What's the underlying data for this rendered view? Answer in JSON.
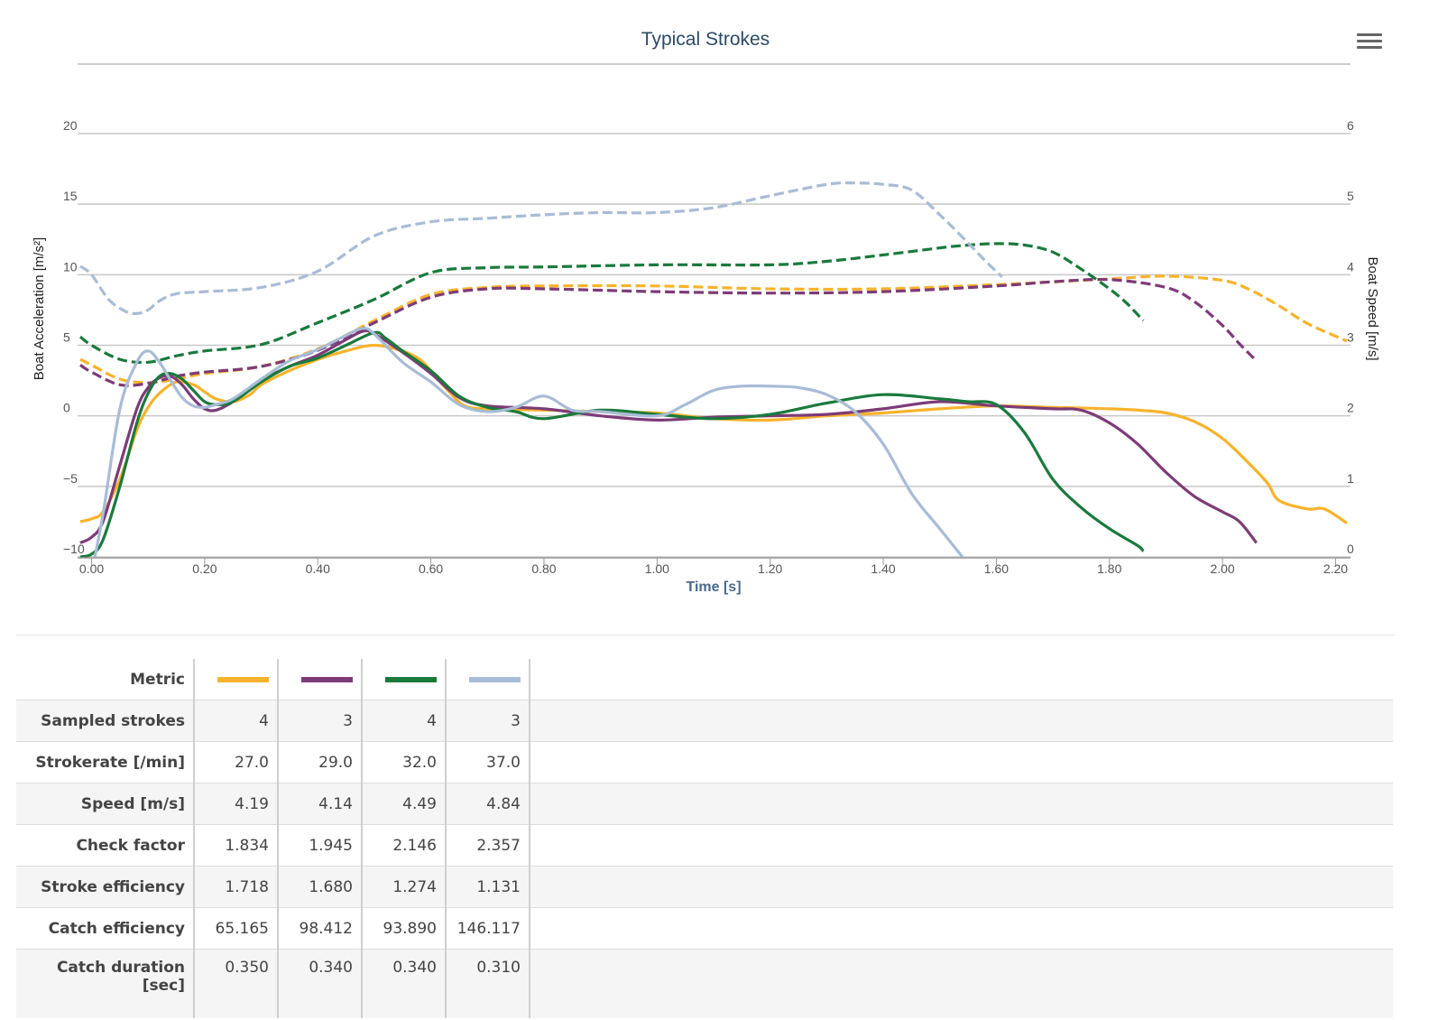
{
  "chart_data": {
    "type": "line",
    "title": "Typical Strokes",
    "xlabel": "Time [s]",
    "ylabel_left": "Boat Acceleration [m/s²]",
    "ylabel_right": "Boat Speed [m/s]",
    "xlim": [
      -0.02,
      2.22
    ],
    "ylim_left": [
      -10,
      20
    ],
    "ylim_right": [
      0,
      6
    ],
    "x_ticks": [
      "0.00",
      "0.20",
      "0.40",
      "0.60",
      "0.80",
      "1.00",
      "1.20",
      "1.40",
      "1.60",
      "1.80",
      "2.00",
      "2.20"
    ],
    "x_tick_values": [
      0,
      0.2,
      0.4,
      0.6,
      0.8,
      1.0,
      1.2,
      1.4,
      1.6,
      1.8,
      2.0,
      2.2
    ],
    "y_left_ticks": [
      "20",
      "15",
      "10",
      "5",
      "0",
      "−5",
      "−10"
    ],
    "y_left_tick_values": [
      20,
      15,
      10,
      5,
      0,
      -5,
      -10
    ],
    "y_right_ticks": [
      "6",
      "5",
      "4",
      "3",
      "2",
      "1",
      "0"
    ],
    "y_right_tick_values": [
      6,
      5,
      4,
      3,
      2,
      1,
      0
    ],
    "grid": true,
    "series": [
      {
        "color": "#f7b32b",
        "axis": "left",
        "style": "solid",
        "x": [
          -0.02,
          0.0,
          0.02,
          0.05,
          0.08,
          0.1,
          0.12,
          0.15,
          0.18,
          0.2,
          0.22,
          0.25,
          0.28,
          0.3,
          0.35,
          0.4,
          0.45,
          0.5,
          0.55,
          0.58,
          0.6,
          0.63,
          0.66,
          0.7,
          0.8,
          0.9,
          1.0,
          1.1,
          1.2,
          1.3,
          1.4,
          1.5,
          1.6,
          1.7,
          1.8,
          1.85,
          1.9,
          1.95,
          2.0,
          2.05,
          2.08,
          2.1,
          2.15,
          2.18,
          2.22
        ],
        "y": [
          -7.5,
          -7.3,
          -6.8,
          -4.5,
          -1.0,
          0.6,
          1.6,
          2.4,
          2.2,
          1.7,
          1.2,
          1.0,
          1.5,
          2.2,
          3.2,
          4.0,
          4.6,
          5.0,
          4.6,
          4.0,
          3.2,
          1.8,
          0.7,
          0.5,
          0.4,
          0.3,
          0.2,
          -0.2,
          -0.3,
          0.0,
          0.2,
          0.5,
          0.7,
          0.6,
          0.5,
          0.4,
          0.2,
          -0.4,
          -1.6,
          -3.5,
          -4.8,
          -6.0,
          -6.6,
          -6.6,
          -7.6
        ]
      },
      {
        "color": "#f7b32b",
        "axis": "right",
        "style": "dashed",
        "x": [
          -0.02,
          0.0,
          0.05,
          0.1,
          0.15,
          0.2,
          0.3,
          0.4,
          0.5,
          0.6,
          0.7,
          0.8,
          1.0,
          1.2,
          1.4,
          1.6,
          1.8,
          1.9,
          2.0,
          2.05,
          2.1,
          2.15,
          2.22
        ],
        "y": [
          2.8,
          2.72,
          2.52,
          2.47,
          2.52,
          2.6,
          2.7,
          2.95,
          3.35,
          3.72,
          3.82,
          3.84,
          3.84,
          3.8,
          3.8,
          3.86,
          3.94,
          3.98,
          3.92,
          3.78,
          3.56,
          3.31,
          3.06
        ]
      },
      {
        "color": "#7d3b78",
        "axis": "left",
        "style": "solid",
        "x": [
          -0.02,
          0.0,
          0.02,
          0.05,
          0.08,
          0.1,
          0.12,
          0.14,
          0.16,
          0.18,
          0.2,
          0.22,
          0.25,
          0.3,
          0.35,
          0.4,
          0.45,
          0.48,
          0.5,
          0.55,
          0.6,
          0.65,
          0.7,
          0.8,
          0.9,
          1.0,
          1.1,
          1.2,
          1.3,
          1.4,
          1.5,
          1.6,
          1.7,
          1.75,
          1.8,
          1.85,
          1.9,
          1.95,
          2.0,
          2.03,
          2.06
        ],
        "y": [
          -9.0,
          -8.6,
          -7.5,
          -3.5,
          0.5,
          2.0,
          2.7,
          2.8,
          2.2,
          1.2,
          0.5,
          0.4,
          1.0,
          2.5,
          3.5,
          4.3,
          5.4,
          6.0,
          5.8,
          4.5,
          3.0,
          1.3,
          0.7,
          0.5,
          0.0,
          -0.3,
          -0.1,
          0.0,
          0.1,
          0.5,
          1.0,
          0.7,
          0.5,
          0.4,
          -0.5,
          -2.0,
          -4.0,
          -5.7,
          -6.8,
          -7.5,
          -9.0
        ]
      },
      {
        "color": "#7d3b78",
        "axis": "right",
        "style": "dashed",
        "x": [
          -0.02,
          0.0,
          0.05,
          0.1,
          0.15,
          0.2,
          0.3,
          0.4,
          0.5,
          0.6,
          0.7,
          0.8,
          1.0,
          1.2,
          1.4,
          1.6,
          1.7,
          1.8,
          1.9,
          1.95,
          2.0,
          2.03,
          2.06
        ],
        "y": [
          2.72,
          2.62,
          2.44,
          2.46,
          2.56,
          2.62,
          2.7,
          2.93,
          3.32,
          3.68,
          3.8,
          3.8,
          3.76,
          3.74,
          3.76,
          3.84,
          3.9,
          3.93,
          3.82,
          3.62,
          3.28,
          3.02,
          2.78
        ]
      },
      {
        "color": "#1a7a3c",
        "axis": "left",
        "style": "solid",
        "x": [
          -0.02,
          0.0,
          0.02,
          0.05,
          0.08,
          0.1,
          0.12,
          0.14,
          0.16,
          0.18,
          0.2,
          0.22,
          0.25,
          0.3,
          0.35,
          0.4,
          0.45,
          0.5,
          0.52,
          0.55,
          0.6,
          0.65,
          0.7,
          0.75,
          0.8,
          0.9,
          1.0,
          1.1,
          1.2,
          1.3,
          1.4,
          1.5,
          1.55,
          1.6,
          1.65,
          1.7,
          1.75,
          1.8,
          1.85,
          1.86
        ],
        "y": [
          -10.0,
          -9.8,
          -8.8,
          -5.0,
          -0.5,
          1.6,
          2.8,
          3.0,
          2.6,
          1.8,
          1.0,
          0.8,
          1.0,
          2.4,
          3.5,
          4.1,
          5.0,
          5.9,
          5.5,
          4.6,
          3.2,
          1.4,
          0.6,
          0.3,
          -0.2,
          0.4,
          0.1,
          -0.2,
          0.1,
          0.9,
          1.5,
          1.2,
          1.0,
          0.8,
          -1.2,
          -4.5,
          -6.5,
          -8.0,
          -9.2,
          -9.6
        ]
      },
      {
        "color": "#1a7a3c",
        "axis": "right",
        "style": "dashed",
        "x": [
          -0.02,
          0.0,
          0.05,
          0.1,
          0.15,
          0.2,
          0.3,
          0.4,
          0.5,
          0.6,
          0.7,
          0.8,
          1.0,
          1.2,
          1.3,
          1.4,
          1.5,
          1.55,
          1.6,
          1.65,
          1.7,
          1.75,
          1.8,
          1.83,
          1.86
        ],
        "y": [
          3.12,
          3.0,
          2.8,
          2.76,
          2.85,
          2.92,
          3.01,
          3.32,
          3.65,
          4.03,
          4.1,
          4.11,
          4.14,
          4.14,
          4.19,
          4.28,
          4.38,
          4.42,
          4.44,
          4.42,
          4.32,
          4.08,
          3.8,
          3.6,
          3.35
        ]
      },
      {
        "color": "#a8bcd6",
        "axis": "left",
        "style": "solid",
        "x": [
          -0.02,
          -0.01,
          0.0,
          0.02,
          0.05,
          0.08,
          0.1,
          0.12,
          0.14,
          0.16,
          0.18,
          0.2,
          0.22,
          0.25,
          0.3,
          0.35,
          0.4,
          0.45,
          0.48,
          0.5,
          0.55,
          0.6,
          0.65,
          0.7,
          0.75,
          0.8,
          0.85,
          0.9,
          1.0,
          1.05,
          1.1,
          1.15,
          1.2,
          1.25,
          1.3,
          1.35,
          1.4,
          1.45,
          1.5,
          1.54
        ],
        "y": [
          -12.0,
          -12.0,
          -11.0,
          -7.0,
          0.5,
          3.8,
          4.6,
          3.8,
          2.5,
          1.3,
          0.7,
          0.6,
          0.8,
          1.2,
          2.6,
          3.9,
          4.7,
          5.7,
          6.2,
          5.8,
          3.8,
          2.4,
          0.8,
          0.3,
          0.6,
          1.4,
          0.4,
          0.3,
          0.0,
          0.8,
          1.8,
          2.1,
          2.1,
          2.0,
          1.5,
          0.3,
          -2.0,
          -5.5,
          -8.0,
          -10.0
        ]
      },
      {
        "color": "#a8bcd6",
        "axis": "right",
        "style": "dashed",
        "x": [
          -0.02,
          0.0,
          0.03,
          0.06,
          0.08,
          0.1,
          0.12,
          0.15,
          0.2,
          0.3,
          0.4,
          0.5,
          0.6,
          0.7,
          0.8,
          0.9,
          1.0,
          1.1,
          1.2,
          1.3,
          1.35,
          1.4,
          1.45,
          1.5,
          1.55,
          1.58,
          1.61
        ],
        "y": [
          4.12,
          4.0,
          3.65,
          3.48,
          3.45,
          3.5,
          3.63,
          3.73,
          3.76,
          3.82,
          4.05,
          4.55,
          4.75,
          4.8,
          4.85,
          4.88,
          4.88,
          4.95,
          5.12,
          5.28,
          5.3,
          5.28,
          5.2,
          4.85,
          4.45,
          4.2,
          3.97
        ]
      }
    ]
  },
  "table": {
    "header_label": "Metric",
    "swatch_colors": [
      "#f7b32b",
      "#7d3b78",
      "#1a7a3c",
      "#a8bcd6"
    ],
    "rows": [
      {
        "label": "Sampled strokes",
        "values": [
          "4",
          "3",
          "4",
          "3"
        ]
      },
      {
        "label": "Strokerate [/min]",
        "values": [
          "27.0",
          "29.0",
          "32.0",
          "37.0"
        ]
      },
      {
        "label": "Speed [m/s]",
        "values": [
          "4.19",
          "4.14",
          "4.49",
          "4.84"
        ]
      },
      {
        "label": "Check factor",
        "values": [
          "1.834",
          "1.945",
          "2.146",
          "2.357"
        ]
      },
      {
        "label": "Stroke efficiency",
        "values": [
          "1.718",
          "1.680",
          "1.274",
          "1.131"
        ]
      },
      {
        "label": "Catch efficiency",
        "values": [
          "65.165",
          "98.412",
          "93.890",
          "146.117"
        ]
      },
      {
        "label": "Catch duration [sec]",
        "values": [
          "0.350",
          "0.340",
          "0.340",
          "0.310"
        ]
      }
    ]
  }
}
